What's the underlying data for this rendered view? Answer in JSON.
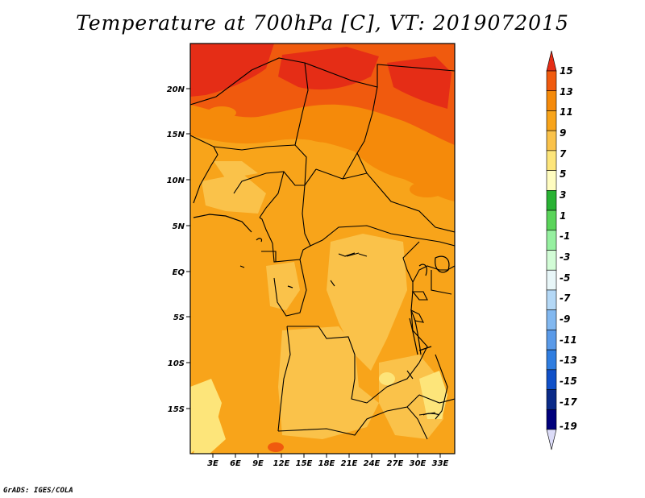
{
  "title": "Temperature at 700hPa [C], VT: 2019072015",
  "credit": "GrADS: IGES/COLA",
  "map": {
    "variable": "Temperature at 700hPa",
    "units": "C",
    "lat_ticks": [
      "20N",
      "15N",
      "10N",
      "5N",
      "EQ",
      "5S",
      "10S",
      "15S"
    ],
    "lon_ticks": [
      "3E",
      "6E",
      "9E",
      "12E",
      "15E",
      "18E",
      "21E",
      "24E",
      "27E",
      "30E",
      "33E"
    ]
  },
  "colorbar": {
    "labels": [
      "15",
      "13",
      "11",
      "9",
      "7",
      "5",
      "3",
      "1",
      "-1",
      "-3",
      "-5",
      "-7",
      "-9",
      "-11",
      "-13",
      "-15",
      "-17",
      "-19"
    ],
    "colors": [
      "#e52d16",
      "#f05a0e",
      "#f58a0a",
      "#f8a41a",
      "#fac24a",
      "#fde57a",
      "#fffcc0",
      "#29b234",
      "#5ad45a",
      "#96f0a0",
      "#d2fcd6",
      "#e8f6f8",
      "#b4d8f6",
      "#82b8f0",
      "#5a9ae8",
      "#2f7de0",
      "#1050c8",
      "#0a2a88",
      "#00007c",
      "#dcdcf8"
    ]
  }
}
